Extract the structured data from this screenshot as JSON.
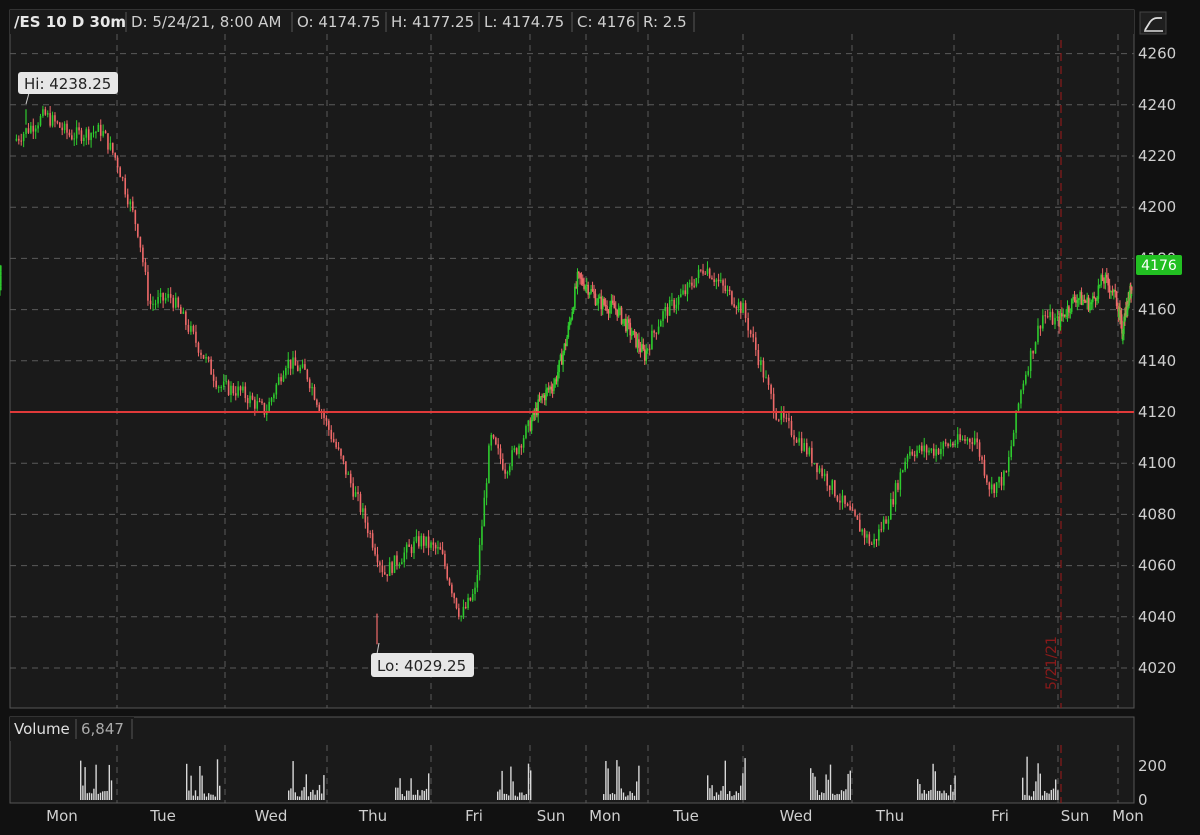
{
  "header": {
    "symbol": "/ES 10 D 30m",
    "date": "D: 5/24/21, 8:00 AM",
    "open": "O: 4174.75",
    "high": "H: 4177.25",
    "low": "L: 4174.75",
    "close": "C: 4176",
    "range": "R: 2.5"
  },
  "colors": {
    "up": "#2ecc2e",
    "down": "#f06a6a",
    "support_line": "#e03a3a",
    "price_badge": "#22c022",
    "grid": "#5a5a5a",
    "background": "#1a1a1a",
    "session_marker": "#8b1a1a"
  },
  "annotations": {
    "hi_label": "Hi: 4238.25",
    "lo_label": "Lo: 4029.25",
    "current_price": "4176",
    "session_marker_label": "5/21/21"
  },
  "volume_panel": {
    "label": "Volume",
    "value": "6,847"
  },
  "chart_data": {
    "type": "line",
    "subtype": "candlestick-30m",
    "y_ticks": [
      4020,
      4040,
      4060,
      4080,
      4100,
      4120,
      4140,
      4160,
      4180,
      4200,
      4220,
      4240,
      4260
    ],
    "ylim": [
      4005,
      4265
    ],
    "x_tick_labels": [
      "Mon",
      "Tue",
      "Wed",
      "Thu",
      "Fri",
      "Sun",
      "Mon",
      "Tue",
      "Wed",
      "Thu",
      "Fri",
      "Sun",
      "Mon"
    ],
    "hi": 4238.25,
    "lo": 4029.25,
    "last": 4176,
    "horizontal_line": 4120,
    "grid": true,
    "price_series": [
      [
        0,
        4226
      ],
      [
        0.3,
        4236
      ],
      [
        0.55,
        4228
      ],
      [
        0.85,
        4230
      ],
      [
        1.0,
        4218
      ],
      [
        1.2,
        4190
      ],
      [
        1.3,
        4162
      ],
      [
        1.5,
        4165
      ],
      [
        1.7,
        4150
      ],
      [
        1.95,
        4130
      ],
      [
        2.15,
        4128
      ],
      [
        2.4,
        4120
      ],
      [
        2.6,
        4140
      ],
      [
        2.8,
        4135
      ],
      [
        3.0,
        4115
      ],
      [
        3.3,
        4085
      ],
      [
        3.55,
        4057
      ],
      [
        3.75,
        4065
      ],
      [
        3.9,
        4070
      ],
      [
        4.1,
        4065
      ],
      [
        4.3,
        4040
      ],
      [
        4.45,
        4050
      ],
      [
        4.6,
        4110
      ],
      [
        4.75,
        4098
      ],
      [
        5.0,
        4115
      ],
      [
        5.2,
        4125
      ],
      [
        5.45,
        4132
      ],
      [
        5.65,
        4148
      ],
      [
        5.85,
        4172
      ],
      [
        6.0,
        4170
      ],
      [
        6.2,
        4163
      ],
      [
        6.5,
        4160
      ],
      [
        6.8,
        4148
      ],
      [
        6.95,
        4142
      ],
      [
        7.15,
        4158
      ],
      [
        7.4,
        4167
      ],
      [
        7.6,
        4177
      ],
      [
        7.8,
        4168
      ],
      [
        8.0,
        4160
      ],
      [
        8.15,
        4140
      ],
      [
        8.3,
        4120
      ],
      [
        8.5,
        4110
      ],
      [
        8.75,
        4095
      ],
      [
        8.95,
        4082
      ],
      [
        9.2,
        4068
      ],
      [
        9.35,
        4080
      ],
      [
        9.55,
        4105
      ],
      [
        9.8,
        4105
      ],
      [
        10.0,
        4108
      ],
      [
        10.2,
        4110
      ],
      [
        10.35,
        4090
      ],
      [
        10.5,
        4095
      ],
      [
        10.65,
        4130
      ],
      [
        10.85,
        4158
      ],
      [
        11.0,
        4155
      ],
      [
        11.3,
        4165
      ],
      [
        11.55,
        4162
      ],
      [
        11.75,
        4172
      ],
      [
        11.9,
        4168
      ],
      [
        12.05,
        4158
      ],
      [
        12.2,
        4158
      ],
      [
        12.35,
        4150
      ],
      [
        12.55,
        4160
      ],
      [
        12.75,
        4164
      ],
      [
        12.95,
        4168
      ],
      [
        13.1,
        4176
      ]
    ],
    "volume_ticks": [
      0,
      200
    ]
  }
}
